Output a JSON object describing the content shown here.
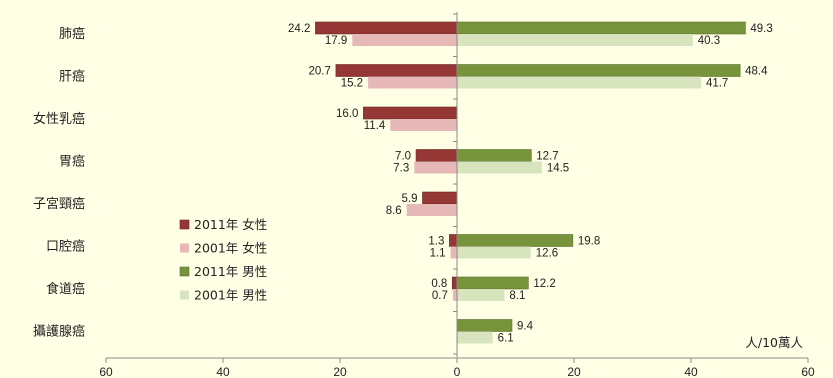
{
  "chart_data": {
    "type": "bar",
    "orientation": "horizontal-diverging",
    "categories": [
      "肺癌",
      "肝癌",
      "女性乳癌",
      "胃癌",
      "子宮頸癌",
      "口腔癌",
      "食道癌",
      "攝護腺癌"
    ],
    "series": [
      {
        "name": "2011年 女性",
        "side": "left",
        "color": "#953735",
        "values": [
          24.2,
          20.7,
          16.0,
          7.0,
          5.9,
          1.3,
          0.8,
          null
        ]
      },
      {
        "name": "2001年 女性",
        "side": "left",
        "color": "#e6b9b8",
        "values": [
          17.9,
          15.2,
          11.4,
          7.3,
          8.6,
          1.1,
          0.7,
          null
        ]
      },
      {
        "name": "2011年 男性",
        "side": "right",
        "color": "#77933c",
        "values": [
          49.3,
          48.4,
          null,
          12.7,
          null,
          19.8,
          12.2,
          9.4
        ]
      },
      {
        "name": "2001年 男性",
        "side": "right",
        "color": "#d7e4bd",
        "values": [
          40.3,
          41.7,
          null,
          14.5,
          null,
          12.6,
          8.1,
          6.1
        ]
      }
    ],
    "value_labels": {
      "2011年 女性": [
        "24.2",
        "20.7",
        "16.0",
        "7.0",
        "5.9",
        "1.3",
        "0.8",
        null
      ],
      "2001年 女性": [
        "17.9",
        "15.2",
        "11.4",
        "7.3",
        "8.6",
        "1.1",
        "0.7",
        null
      ],
      "2011年 男性": [
        "49.3",
        "48.4",
        null,
        "12.7",
        null,
        "19.8",
        "12.2",
        "9.4"
      ],
      "2001年 男性": [
        "40.3",
        "41.7",
        null,
        "14.5",
        null,
        "12.6",
        "8.1",
        "6.1"
      ]
    },
    "xlim": [
      -60,
      60
    ],
    "xticks": [
      -60,
      -40,
      -20,
      0,
      20,
      40,
      60
    ],
    "xtick_labels": [
      "60",
      "40",
      "20",
      "0",
      "20",
      "40",
      "60"
    ],
    "unit_label": "人/10萬人",
    "legend_position": "center-left",
    "grid": false
  }
}
